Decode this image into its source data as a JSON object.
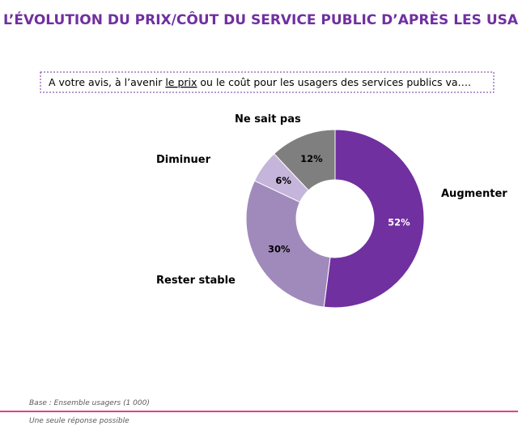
{
  "chart_data": {
    "type": "donut",
    "title": "L’ÉVOLUTION DU PRIX/CÔUT DU SERVICE PUBLIC D’APRÈS LES USAGERS",
    "question": {
      "before": "A votre avis, à l’avenir ",
      "underlined": "le prix",
      "after": " ou le coût pour les usagers des services publics va…."
    },
    "categories": [
      "Augmenter",
      "Rester stable",
      "Diminuer",
      "Ne sait pas"
    ],
    "values": [
      52,
      30,
      6,
      12
    ],
    "value_labels": [
      "52%",
      "30%",
      "6%",
      "12%"
    ],
    "colors": [
      "#7030a0",
      "#a08abb",
      "#c5b5da",
      "#7f7f7f"
    ],
    "footnotes": [
      "Base : Ensemble usagers (1 000)",
      "Une seule réponse possible"
    ]
  }
}
